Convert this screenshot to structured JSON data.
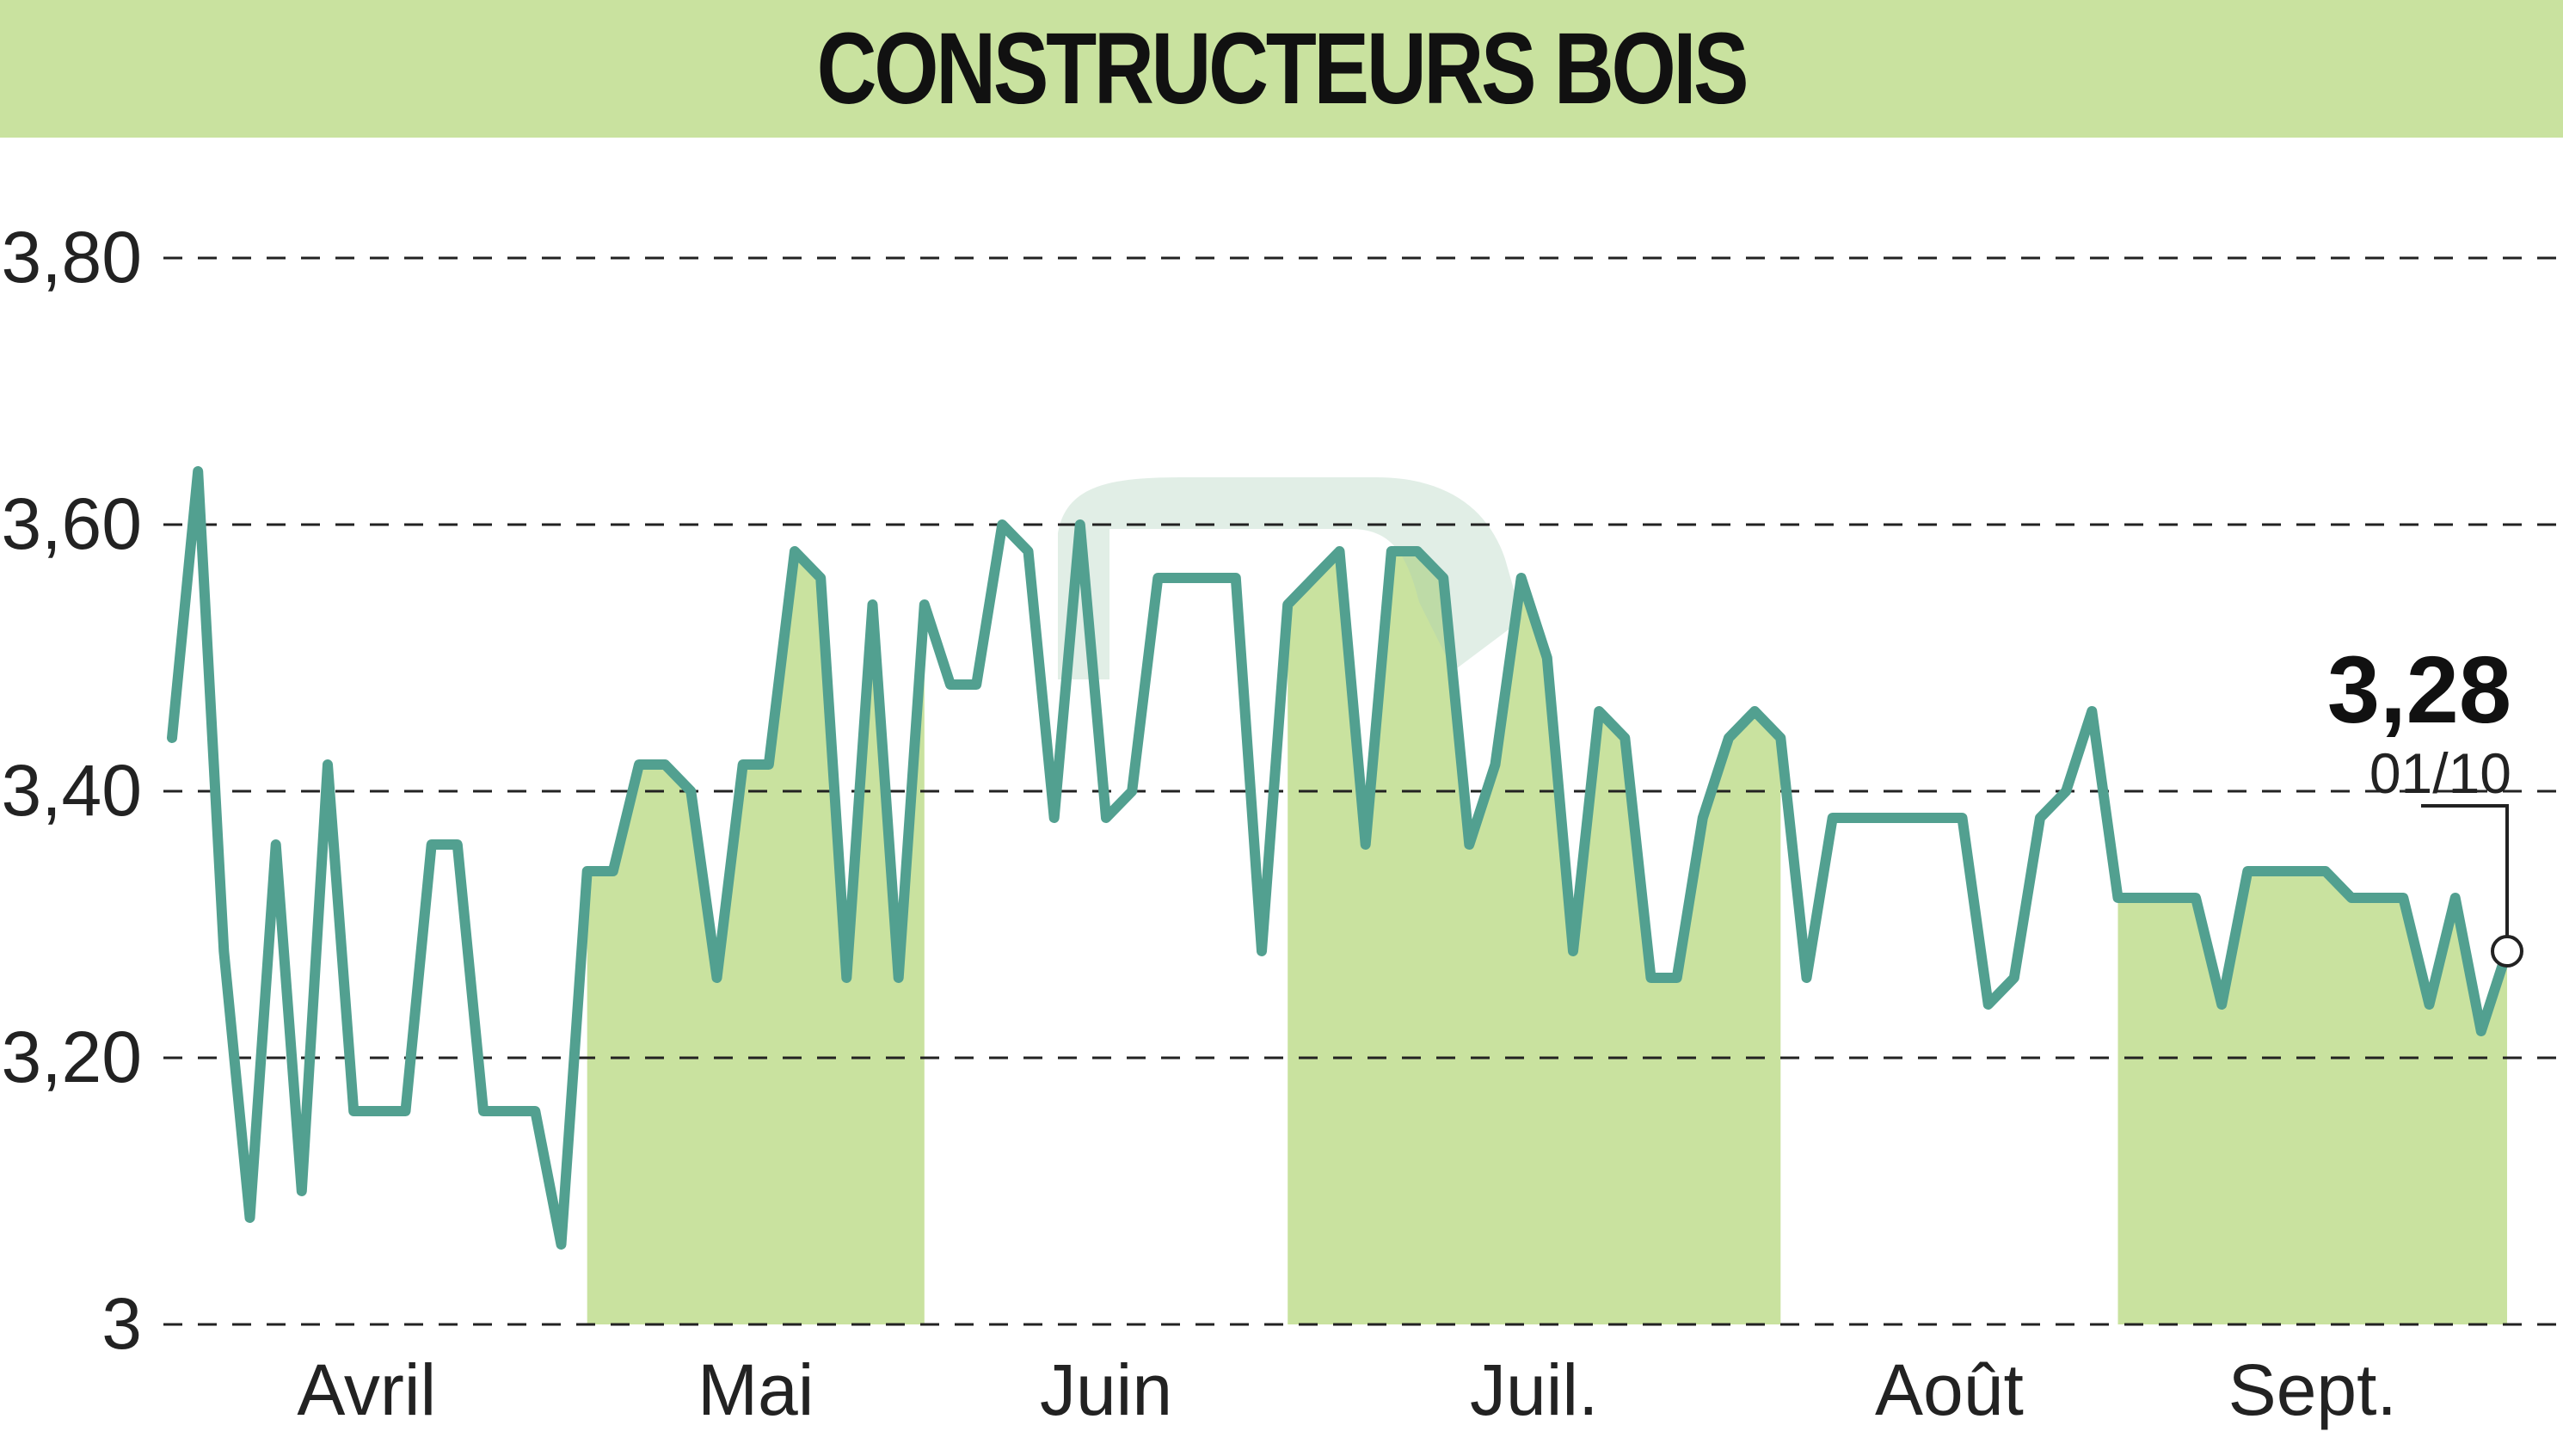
{
  "chart_data": {
    "type": "line",
    "title": "CONSTRUCTEURS BOIS",
    "y_ticks": [
      "3",
      "3,20",
      "3,40",
      "3,60",
      "3,80"
    ],
    "y_tick_values": [
      3.0,
      3.2,
      3.4,
      3.6,
      3.8
    ],
    "ylim": [
      3.0,
      3.8
    ],
    "x_labels": [
      "Avril",
      "Mai",
      "Juin",
      "Juil.",
      "Août",
      "Sept."
    ],
    "last_value": "3,28",
    "last_date": "01/10",
    "grid": "horizontal-dashed",
    "colors": {
      "line": "#52a090",
      "band": "#c9e29f",
      "title_bg": "#c9e29f"
    },
    "shaded_months": [
      "Mai",
      "Juil.",
      "Sept."
    ],
    "series": [
      {
        "values": [
          3.44,
          3.64,
          3.28,
          3.08,
          3.36,
          3.1,
          3.42,
          3.16,
          3.16,
          3.16,
          3.36,
          3.36,
          3.16,
          3.16,
          3.16,
          3.06,
          3.34,
          3.34,
          3.42,
          3.42,
          3.4,
          3.26,
          3.42,
          3.42,
          3.58,
          3.56,
          3.26,
          3.54,
          3.26,
          3.54,
          3.48,
          3.48,
          3.6,
          3.58,
          3.38,
          3.6,
          3.38,
          3.4,
          3.56,
          3.56,
          3.56,
          3.56,
          3.28,
          3.54,
          3.56,
          3.58,
          3.36,
          3.58,
          3.58,
          3.56,
          3.36,
          3.42,
          3.56,
          3.5,
          3.28,
          3.46,
          3.44,
          3.26,
          3.26,
          3.38,
          3.44,
          3.46,
          3.44,
          3.26,
          3.38,
          3.38,
          3.38,
          3.38,
          3.38,
          3.38,
          3.24,
          3.26,
          3.38,
          3.4,
          3.46,
          3.32,
          3.32,
          3.32,
          3.32,
          3.24,
          3.34,
          3.34,
          3.34,
          3.34,
          3.32,
          3.32,
          3.32,
          3.24,
          3.32,
          3.22,
          3.28
        ]
      }
    ]
  }
}
